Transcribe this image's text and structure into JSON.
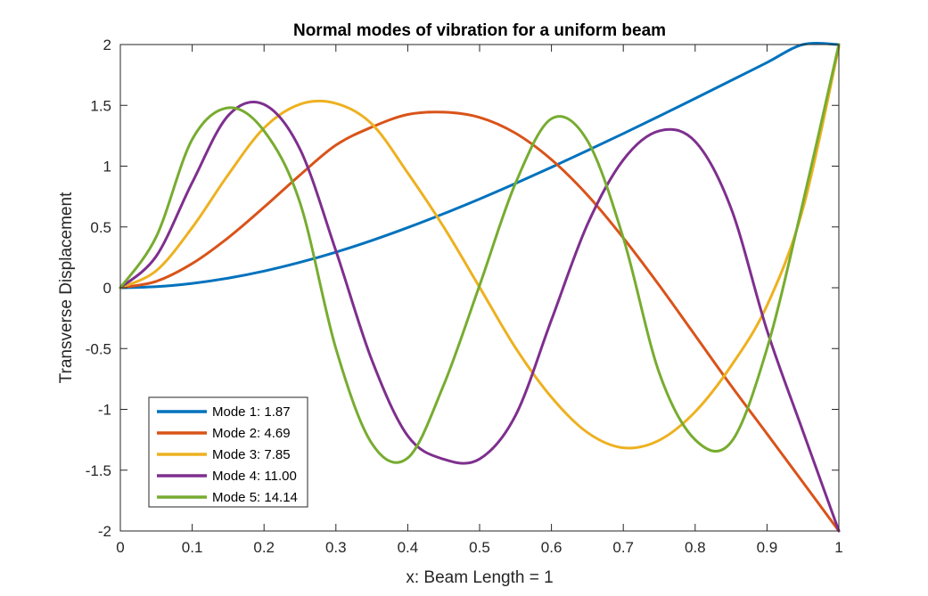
{
  "chart_data": {
    "type": "line",
    "title": "Normal modes of vibration for a uniform beam",
    "xlabel": "x: Beam Length = 1",
    "ylabel": "Transverse Displacement",
    "xlim": [
      0,
      1
    ],
    "ylim": [
      -2,
      2
    ],
    "xticks": [
      "0",
      "0.1",
      "0.2",
      "0.3",
      "0.4",
      "0.5",
      "0.6",
      "0.7",
      "0.8",
      "0.9",
      "1"
    ],
    "yticks": [
      "-2",
      "-1.5",
      "-1",
      "-0.5",
      "0",
      "0.5",
      "1",
      "1.5",
      "2"
    ],
    "grid": false,
    "legend_position": "bottom-left",
    "x": [
      0,
      0.05,
      0.1,
      0.15,
      0.2,
      0.25,
      0.3,
      0.35,
      0.4,
      0.45,
      0.5,
      0.55,
      0.6,
      0.65,
      0.7,
      0.75,
      0.8,
      0.85,
      0.9,
      0.95,
      1
    ],
    "series": [
      {
        "name": "Mode 1: 1.87",
        "color": "#0072BD",
        "values": [
          0,
          0.009,
          0.036,
          0.079,
          0.137,
          0.209,
          0.293,
          0.389,
          0.495,
          0.609,
          0.73,
          0.858,
          0.991,
          1.128,
          1.268,
          1.411,
          1.557,
          1.704,
          1.852,
          2.0,
          2.0
        ]
      },
      {
        "name": "Mode 2: 4.69",
        "color": "#D95319",
        "values": [
          0,
          0.053,
          0.199,
          0.411,
          0.663,
          0.927,
          1.173,
          1.321,
          1.425,
          1.444,
          1.401,
          1.271,
          1.054,
          0.763,
          0.41,
          0.02,
          -0.392,
          -0.805,
          -1.201,
          -1.6,
          -2.0
        ]
      },
      {
        "name": "Mode 3: 7.85",
        "color": "#EDB120",
        "values": [
          0,
          0.14,
          0.495,
          0.929,
          1.314,
          1.509,
          1.516,
          1.347,
          0.944,
          0.5,
          0.004,
          -0.494,
          -0.9,
          -1.19,
          -1.316,
          -1.254,
          -1.02,
          -0.643,
          -0.146,
          0.65,
          1.98
        ]
      },
      {
        "name": "Mode 4: 11.00",
        "color": "#7E2F8E",
        "values": [
          0,
          0.26,
          0.865,
          1.415,
          1.507,
          1.14,
          0.304,
          -0.594,
          -1.218,
          -1.41,
          -1.408,
          -1.05,
          -0.264,
          0.52,
          1.052,
          1.29,
          1.203,
          0.653,
          -0.35,
          -1.18,
          -2.0
        ]
      },
      {
        "name": "Mode 5: 14.14",
        "color": "#77AC30",
        "values": [
          0,
          0.42,
          1.22,
          1.48,
          1.29,
          0.7,
          -0.5,
          -1.28,
          -1.4,
          -0.8,
          0.02,
          0.86,
          1.39,
          1.21,
          0.41,
          -0.7,
          -1.25,
          -1.27,
          -0.5,
          0.7,
          2.0
        ]
      }
    ]
  }
}
